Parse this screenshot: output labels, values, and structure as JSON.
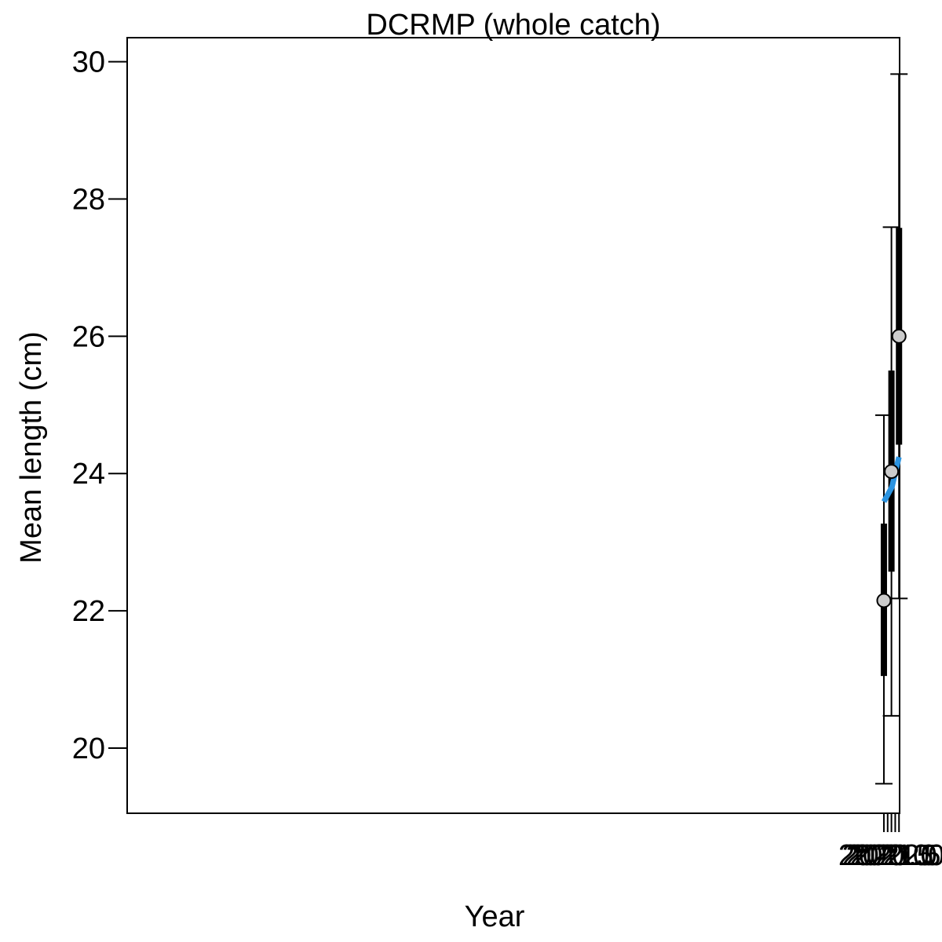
{
  "chart_data": {
    "type": "line",
    "title": "DCRMP (whole catch)",
    "xlabel": "Year",
    "ylabel": "Mean length (cm)",
    "xlim": [
      1919.92,
      2022.08
    ],
    "ylim": [
      19.05,
      30.35
    ],
    "xticks": [
      2020.0,
      2020.5,
      2021.0,
      2021.5,
      2022.0
    ],
    "xtick_labels": [
      "2020.0",
      "2020.5",
      "2021.0",
      "2021.5",
      "2022.0"
    ],
    "yticks": [
      20,
      22,
      24,
      26,
      28,
      30
    ],
    "ytick_labels": [
      "20",
      "22",
      "24",
      "26",
      "28",
      "30"
    ],
    "grid": false,
    "legend": "none",
    "observations": [
      {
        "x": 2020,
        "y": 22.15,
        "ci_thick": [
          21.05,
          23.27
        ],
        "ci_thin": [
          19.48,
          24.85
        ]
      },
      {
        "x": 2021,
        "y": 24.03,
        "ci_thick": [
          22.57,
          25.5
        ],
        "ci_thin": [
          20.47,
          27.59
        ]
      },
      {
        "x": 2022,
        "y": 26.0,
        "ci_thick": [
          24.42,
          27.58
        ],
        "ci_thin": [
          22.18,
          29.82
        ]
      }
    ],
    "fit_line": {
      "x": [
        2020,
        2020.5,
        2021,
        2021.1,
        2021.5,
        2022
      ],
      "y": [
        23.59,
        23.69,
        23.79,
        23.82,
        24.01,
        24.24
      ],
      "color": "#2b93e0"
    },
    "point_fill": "#cccccc",
    "errorbar_color": "#000000"
  }
}
